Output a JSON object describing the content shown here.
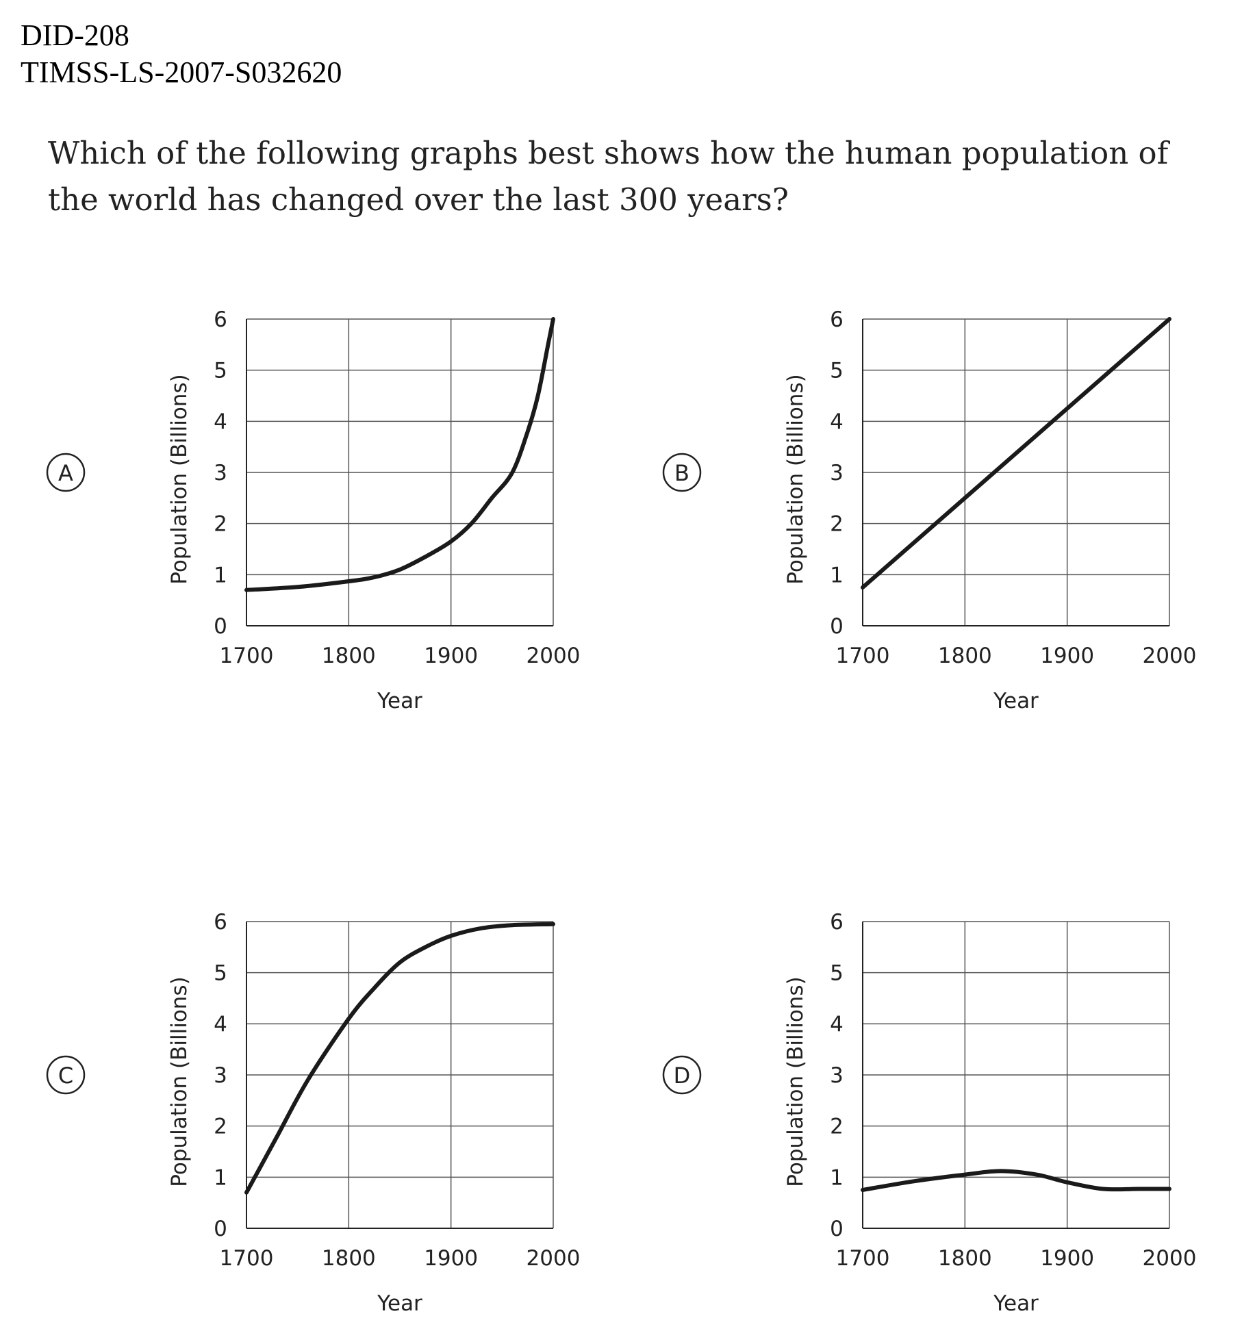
{
  "header": {
    "item_id": "DID-208",
    "source_code": "TIMSS-LS-2007-S032620"
  },
  "question": {
    "text": "Which of the following graphs best shows how the human population of the world has changed over the last 300 years?"
  },
  "chart_data": [
    {
      "option": "A",
      "type": "line",
      "xlabel": "Year",
      "ylabel": "Population (Billions)",
      "xlim": [
        1700,
        2000
      ],
      "ylim": [
        0,
        6
      ],
      "xticks": [
        1700,
        1800,
        1900,
        2000
      ],
      "yticks": [
        0,
        1,
        2,
        3,
        4,
        5,
        6
      ],
      "grid": true,
      "series": [
        {
          "x": [
            1700,
            1750,
            1800,
            1825,
            1850,
            1875,
            1900,
            1920,
            1940,
            1960,
            1975,
            1985,
            1995,
            2000
          ],
          "y": [
            0.7,
            0.76,
            0.87,
            0.95,
            1.1,
            1.35,
            1.65,
            2.0,
            2.5,
            3.0,
            3.8,
            4.5,
            5.5,
            6.0
          ]
        }
      ]
    },
    {
      "option": "B",
      "type": "line",
      "xlabel": "Year",
      "ylabel": "Population (Billions)",
      "xlim": [
        1700,
        2000
      ],
      "ylim": [
        0,
        6
      ],
      "xticks": [
        1700,
        1800,
        1900,
        2000
      ],
      "yticks": [
        0,
        1,
        2,
        3,
        4,
        5,
        6
      ],
      "grid": true,
      "series": [
        {
          "x": [
            1700,
            2000
          ],
          "y": [
            0.75,
            6.0
          ]
        }
      ]
    },
    {
      "option": "C",
      "type": "line",
      "xlabel": "Year",
      "ylabel": "Population (Billions)",
      "xlim": [
        1700,
        2000
      ],
      "ylim": [
        0,
        6
      ],
      "xticks": [
        1700,
        1800,
        1900,
        2000
      ],
      "yticks": [
        0,
        1,
        2,
        3,
        4,
        5,
        6
      ],
      "grid": true,
      "series": [
        {
          "x": [
            1700,
            1730,
            1760,
            1800,
            1825,
            1850,
            1875,
            1900,
            1930,
            1960,
            2000
          ],
          "y": [
            0.7,
            1.8,
            2.9,
            4.1,
            4.7,
            5.2,
            5.5,
            5.72,
            5.87,
            5.93,
            5.95
          ]
        }
      ]
    },
    {
      "option": "D",
      "type": "line",
      "xlabel": "Year",
      "ylabel": "Population (Billions)",
      "xlim": [
        1700,
        2000
      ],
      "ylim": [
        0,
        6
      ],
      "xticks": [
        1700,
        1800,
        1900,
        2000
      ],
      "yticks": [
        0,
        1,
        2,
        3,
        4,
        5,
        6
      ],
      "grid": true,
      "series": [
        {
          "x": [
            1700,
            1750,
            1800,
            1835,
            1870,
            1900,
            1935,
            1970,
            2000
          ],
          "y": [
            0.75,
            0.92,
            1.05,
            1.12,
            1.05,
            0.9,
            0.77,
            0.77,
            0.77
          ]
        }
      ]
    }
  ]
}
